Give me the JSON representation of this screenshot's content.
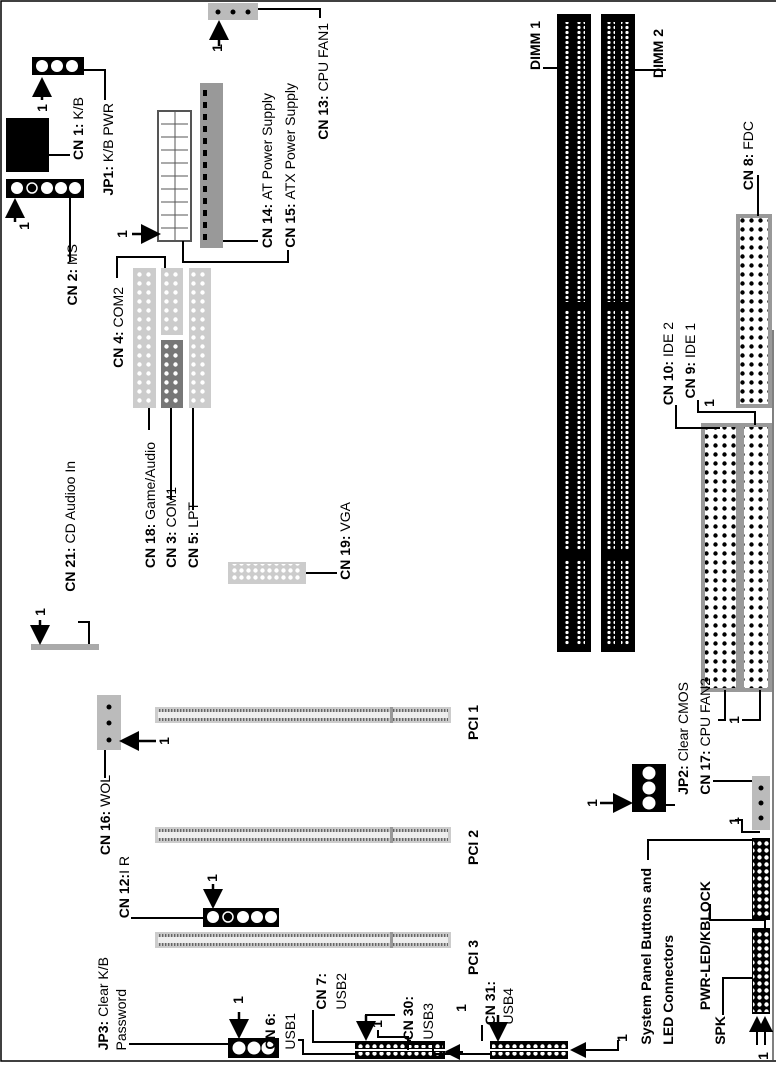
{
  "pin1_marker": "1",
  "labels": {
    "cn1": {
      "code": "CN 1:",
      "name": "K/B"
    },
    "jp1": {
      "code": "JP1:",
      "name": "K/B PWR"
    },
    "cn2": {
      "code": "CN 2:",
      "name": "MS"
    },
    "cn14": {
      "code": "CN 14:",
      "name": "AT Power Supply"
    },
    "cn15": {
      "code": "CN 15:",
      "name": "ATX Power Supply"
    },
    "cn13": {
      "code": "CN 13:",
      "name": "CPU FAN1"
    },
    "dimm1": {
      "code": "DIMM 1",
      "name": ""
    },
    "dimm2": {
      "code": "DIMM 2",
      "name": ""
    },
    "cn8": {
      "code": "CN 8:",
      "name": "FDC"
    },
    "cn4": {
      "code": "CN 4:",
      "name": "COM2"
    },
    "cn18": {
      "code": "CN 18:",
      "name": "Game/Audio"
    },
    "cn3": {
      "code": "CN 3:",
      "name": "COM1"
    },
    "cn5": {
      "code": "CN 5:",
      "name": "LPT"
    },
    "cn10": {
      "code": "CN 10:",
      "name": "IDE 2"
    },
    "cn9": {
      "code": "CN 9:",
      "name": "IDE 1"
    },
    "cn19": {
      "code": "CN 19:",
      "name": "VGA"
    },
    "cn21": {
      "code": "CN 21:",
      "name": "CD Audioo In"
    },
    "pci1": {
      "code": "PCI 1",
      "name": ""
    },
    "pci2": {
      "code": "PCI 2",
      "name": ""
    },
    "pci3": {
      "code": "PCI 3",
      "name": ""
    },
    "cn16": {
      "code": "CN 16:",
      "name": "WOL"
    },
    "cn12": {
      "code": "CN 12:",
      "name": "I R"
    },
    "jp2": {
      "code": "JP2:",
      "name": "Clear CMOS"
    },
    "cn17": {
      "code": "CN 17:",
      "name": "CPU FAN2"
    },
    "panel_line1": "System Panel Buttons and",
    "panel_line2": "LED Connectors",
    "pwr_led": "PWR-LED/KBLOCK",
    "spk": "SPK",
    "jp3_line1": {
      "code": "JP3:",
      "name": "Clear K/B"
    },
    "jp3_line2": "Password",
    "cn6": {
      "code": "CN 6:",
      "name": "USB1"
    },
    "cn7": {
      "code": "CN 7:",
      "name": "USB2"
    },
    "cn30": {
      "code": "CN 30:",
      "name": "USB3"
    },
    "cn31": {
      "code": "CN 31:",
      "name": "USB4"
    }
  }
}
